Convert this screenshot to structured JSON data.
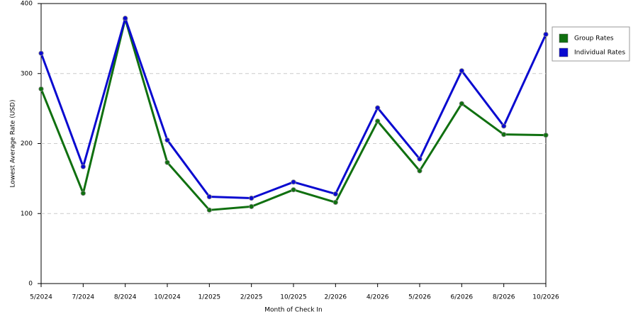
{
  "chart_data": {
    "type": "line",
    "x_label": "Month of Check In",
    "y_label": "Lowest Average Rate (USD)",
    "categories": [
      "5/2024",
      "7/2024",
      "8/2024",
      "10/2024",
      "1/2025",
      "2/2025",
      "10/2025",
      "2/2026",
      "4/2026",
      "5/2026",
      "6/2026",
      "8/2026",
      "10/2026"
    ],
    "series": [
      {
        "name": "Group Rates",
        "color": "#107010",
        "values": [
          278,
          129,
          378,
          173,
          105,
          110,
          134,
          116,
          232,
          161,
          257,
          213,
          212
        ]
      },
      {
        "name": "Individual Rates",
        "color": "#0a0ad0",
        "values": [
          329,
          167,
          379,
          205,
          124,
          122,
          145,
          128,
          251,
          178,
          304,
          225,
          356
        ]
      }
    ],
    "ylim": [
      0,
      400
    ],
    "yticks": [
      0,
      100,
      200,
      300,
      400
    ],
    "grid": true,
    "legend": "right"
  }
}
